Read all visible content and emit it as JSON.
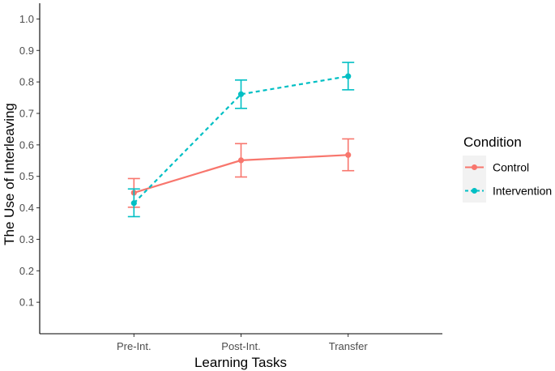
{
  "chart_data": {
    "type": "line",
    "xlabel": "Learning Tasks",
    "ylabel": "The Use of Interleaving",
    "categories": [
      "Pre-Int.",
      "Post-Int.",
      "Transfer"
    ],
    "ylim": [
      0,
      1.05
    ],
    "yticks": [
      0.1,
      0.2,
      0.3,
      0.4,
      0.5,
      0.6,
      0.7,
      0.8,
      0.9,
      1.0
    ],
    "ytick_labels": [
      "0.1",
      "0.2",
      "0.3",
      "0.4",
      "0.5",
      "0.6",
      "0.7",
      "0.8",
      "0.9",
      "1.0"
    ],
    "grid": false,
    "legend": {
      "title": "Condition",
      "position": "right"
    },
    "series": [
      {
        "name": "Control",
        "color": "#F8766D",
        "linestyle": "solid",
        "values": [
          0.448,
          0.551,
          0.568
        ],
        "error_low": [
          0.402,
          0.498,
          0.518
        ],
        "error_high": [
          0.493,
          0.604,
          0.619
        ]
      },
      {
        "name": "Intervention",
        "color": "#00BFC4",
        "linestyle": "dashed",
        "values": [
          0.415,
          0.761,
          0.818
        ],
        "error_low": [
          0.372,
          0.716,
          0.775
        ],
        "error_high": [
          0.46,
          0.806,
          0.862
        ]
      }
    ]
  }
}
